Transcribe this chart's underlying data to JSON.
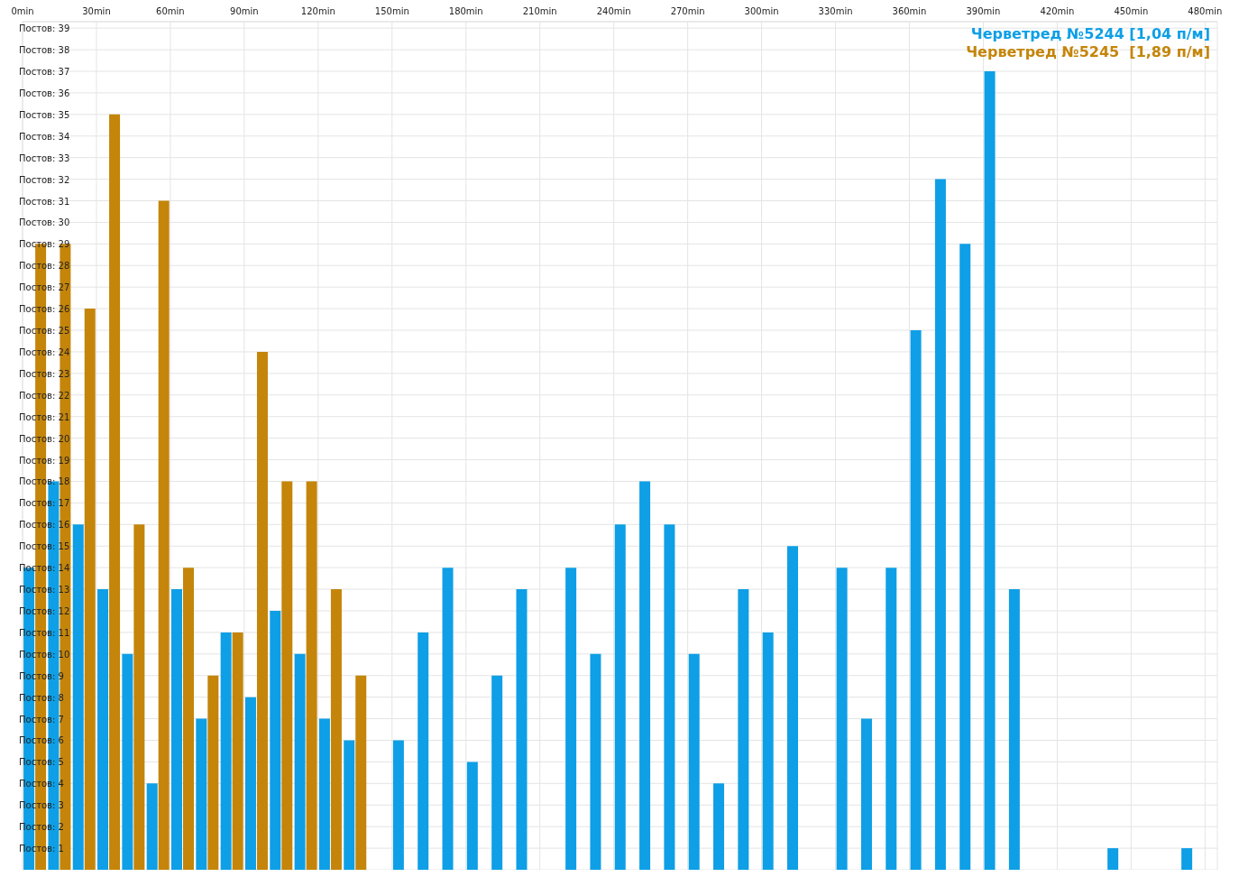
{
  "chart_data": {
    "type": "bar",
    "x": [
      5,
      15,
      25,
      35,
      45,
      55,
      65,
      75,
      85,
      95,
      105,
      115,
      125,
      135,
      145,
      155,
      165,
      175,
      185,
      195,
      205,
      215,
      225,
      235,
      245,
      255,
      265,
      275,
      285,
      295,
      305,
      315,
      325,
      335,
      345,
      355,
      365,
      375,
      385,
      395,
      405,
      415,
      425,
      435,
      445,
      455,
      465,
      475
    ],
    "series": [
      {
        "name": "Черветред №5244 [1,04 п/м]",
        "color": "#0e9fe6",
        "values": [
          14,
          18,
          16,
          13,
          10,
          4,
          13,
          7,
          11,
          8,
          12,
          10,
          7,
          6,
          null,
          6,
          11,
          14,
          5,
          9,
          13,
          null,
          14,
          10,
          16,
          18,
          16,
          10,
          4,
          13,
          11,
          15,
          null,
          14,
          7,
          14,
          25,
          32,
          29,
          37,
          13,
          null,
          null,
          null,
          1,
          null,
          null,
          1
        ]
      },
      {
        "name": "Черветред №5245  [1,89 п/м]",
        "color": "#c4850a",
        "values": [
          29,
          29,
          26,
          35,
          16,
          31,
          14,
          9,
          11,
          24,
          18,
          18,
          13,
          9,
          null,
          null,
          null,
          null,
          null,
          null,
          null,
          null,
          null,
          null,
          null,
          null,
          null,
          null,
          null,
          null,
          null,
          null,
          null,
          null,
          null,
          null,
          null,
          null,
          null,
          null,
          null,
          null,
          null,
          null,
          null,
          null,
          null,
          null
        ]
      }
    ],
    "xlim": [
      0,
      485
    ],
    "xticks": [
      {
        "value": 0,
        "label": "0min"
      },
      {
        "value": 30,
        "label": "30min"
      },
      {
        "value": 60,
        "label": "60min"
      },
      {
        "value": 90,
        "label": "90min"
      },
      {
        "value": 120,
        "label": "120min"
      },
      {
        "value": 150,
        "label": "150min"
      },
      {
        "value": 180,
        "label": "180min"
      },
      {
        "value": 210,
        "label": "210min"
      },
      {
        "value": 240,
        "label": "240min"
      },
      {
        "value": 270,
        "label": "270min"
      },
      {
        "value": 300,
        "label": "300min"
      },
      {
        "value": 330,
        "label": "330min"
      },
      {
        "value": 360,
        "label": "360min"
      },
      {
        "value": 390,
        "label": "390min"
      },
      {
        "value": 420,
        "label": "420min"
      },
      {
        "value": 450,
        "label": "450min"
      },
      {
        "value": 480,
        "label": "480min"
      }
    ],
    "ylim": [
      0,
      39.3
    ],
    "yticks": [
      {
        "value": 1,
        "label": "Постов: 1"
      },
      {
        "value": 2,
        "label": "Постов: 2"
      },
      {
        "value": 3,
        "label": "Постов: 3"
      },
      {
        "value": 4,
        "label": "Постов: 4"
      },
      {
        "value": 5,
        "label": "Постов: 5"
      },
      {
        "value": 6,
        "label": "Постов: 6"
      },
      {
        "value": 7,
        "label": "Постов: 7"
      },
      {
        "value": 8,
        "label": "Постов: 8"
      },
      {
        "value": 9,
        "label": "Постов: 9"
      },
      {
        "value": 10,
        "label": "Постов: 10"
      },
      {
        "value": 11,
        "label": "Постов: 11"
      },
      {
        "value": 12,
        "label": "Постов: 12"
      },
      {
        "value": 13,
        "label": "Постов: 13"
      },
      {
        "value": 14,
        "label": "Постов: 14"
      },
      {
        "value": 15,
        "label": "Постов: 15"
      },
      {
        "value": 16,
        "label": "Постов: 16"
      },
      {
        "value": 17,
        "label": "Постов: 17"
      },
      {
        "value": 18,
        "label": "Постов: 18"
      },
      {
        "value": 19,
        "label": "Постов: 19"
      },
      {
        "value": 20,
        "label": "Постов: 20"
      },
      {
        "value": 21,
        "label": "Постов: 21"
      },
      {
        "value": 22,
        "label": "Постов: 22"
      },
      {
        "value": 23,
        "label": "Постов: 23"
      },
      {
        "value": 24,
        "label": "Постов: 24"
      },
      {
        "value": 25,
        "label": "Постов: 25"
      },
      {
        "value": 26,
        "label": "Постов: 26"
      },
      {
        "value": 27,
        "label": "Постов: 27"
      },
      {
        "value": 28,
        "label": "Постов: 28"
      },
      {
        "value": 29,
        "label": "Постов: 29"
      },
      {
        "value": 30,
        "label": "Постов: 30"
      },
      {
        "value": 31,
        "label": "Постов: 31"
      },
      {
        "value": 32,
        "label": "Постов: 32"
      },
      {
        "value": 33,
        "label": "Постов: 33"
      },
      {
        "value": 34,
        "label": "Постов: 34"
      },
      {
        "value": 35,
        "label": "Постов: 35"
      },
      {
        "value": 36,
        "label": "Постов: 36"
      },
      {
        "value": 37,
        "label": "Постов: 37"
      },
      {
        "value": 38,
        "label": "Постов: 38"
      },
      {
        "value": 39,
        "label": "Постов: 39"
      }
    ],
    "grid": true,
    "legend": "top right"
  }
}
